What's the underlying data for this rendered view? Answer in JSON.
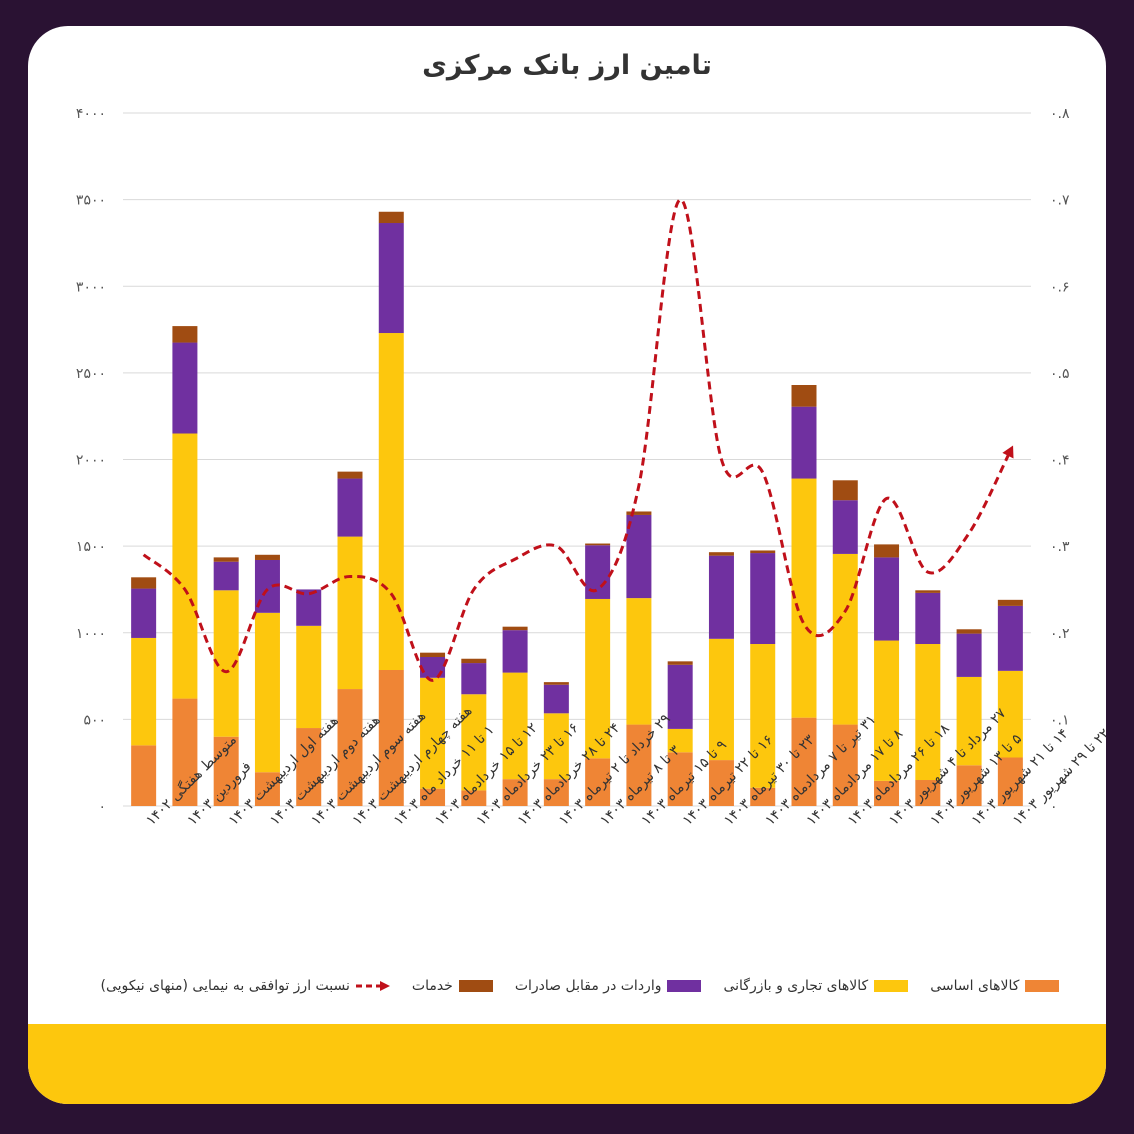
{
  "chart_data": {
    "type": "bar",
    "stacked": true,
    "title": "تامین ارز بانک مرکزی",
    "categories": [
      "متوسط هفتگی ۱۴۰۲",
      "فروردین ۱۴۰۳",
      "هفته اول اردیبهشت ۱۴۰۳",
      "هفته دوم اردیبهشت ۱۴۰۳",
      "هفته سوم اردیبهشت ۱۴۰۳",
      "هفته چهارم اردیبهشت ۱۴۰۳",
      "۱ تا ۱۱ خرداد ماه ۱۴۰۳",
      "۱۲ تا ۱۵ خردادماه ۱۴۰۳",
      "۱۶ تا ۲۳ خردادماه ۱۴۰۳",
      "۲۴ تا ۲۸ خردادماه ۱۴۰۳",
      "۲۹ خرداد تا ۲ تیرماه ۱۴۰۳",
      "۳ تا ۸ تیرماه ۱۴۰۳",
      "۹ تا ۱۵ تیرماه ۱۴۰۳",
      "۱۶ تا ۲۲ تیرماه ۱۴۰۳",
      "۲۳ تا ۳۰ تیرماه ۱۴۰۳",
      "۳۱ تیر تا ۷ مردادماه ۱۴۰۳",
      "۸ تا ۱۷ مردادماه ۱۴۰۳",
      "۱۸ تا ۲۶ مردادماه ۱۴۰۳",
      "۲۷ مرداد تا ۴ شهریور ۱۴۰۳",
      "۵ تا ۱۳ شهریور ۱۴۰۳",
      "۱۴ تا ۲۱ شهریور ۱۴۰۳",
      "۲۲ تا ۲۹ شهریور ۱۴۰۳"
    ],
    "series": [
      {
        "name": "کالاهای اساسی",
        "color": "#ef8535",
        "values": [
          350,
          620,
          400,
          195,
          450,
          675,
          785,
          100,
          90,
          155,
          155,
          275,
          470,
          310,
          265,
          105,
          510,
          470,
          145,
          150,
          235,
          280
        ]
      },
      {
        "name": "کالاهای تجاری و بازرگانی",
        "color": "#fdc70d",
        "values": [
          620,
          1530,
          845,
          920,
          590,
          880,
          1945,
          640,
          555,
          615,
          380,
          920,
          730,
          135,
          700,
          830,
          1380,
          985,
          810,
          785,
          510,
          500
        ]
      },
      {
        "name": "واردات در مقابل صادرات",
        "color": "#7030a0",
        "values": [
          285,
          525,
          165,
          305,
          210,
          335,
          635,
          120,
          180,
          245,
          165,
          310,
          480,
          370,
          480,
          525,
          415,
          310,
          480,
          295,
          250,
          375
        ]
      },
      {
        "name": "خدمات",
        "color": "#a04c12",
        "values": [
          65,
          95,
          25,
          30,
          0,
          40,
          65,
          25,
          25,
          20,
          15,
          10,
          20,
          20,
          20,
          15,
          125,
          115,
          75,
          15,
          25,
          35
        ]
      }
    ],
    "line_series": {
      "name": "نسبت ارز توافقی به نیمایی (منهای نیکویی)",
      "color": "#c0101a",
      "axis": "right",
      "values": [
        0.29,
        0.25,
        0.155,
        0.25,
        0.245,
        0.265,
        0.245,
        0.145,
        0.25,
        0.285,
        0.3,
        0.25,
        0.37,
        0.7,
        0.4,
        0.385,
        0.21,
        0.225,
        0.355,
        0.27,
        0.315,
        0.41
      ]
    },
    "y_left": {
      "min": 0,
      "max": 4000,
      "ticks": [
        "۰",
        "۵۰۰",
        "۱۰۰۰",
        "۱۵۰۰",
        "۲۰۰۰",
        "۲۵۰۰",
        "۳۰۰۰",
        "۳۵۰۰",
        "۴۰۰۰"
      ]
    },
    "y_right": {
      "min": 0,
      "max": 0.8,
      "ticks": [
        "۰",
        "۰.۱",
        "۰.۲",
        "۰.۳",
        "۰.۴",
        "۰.۵",
        "۰.۶",
        "۰.۷",
        "۰.۸"
      ]
    },
    "grid": true,
    "legend_position": "bottom"
  }
}
